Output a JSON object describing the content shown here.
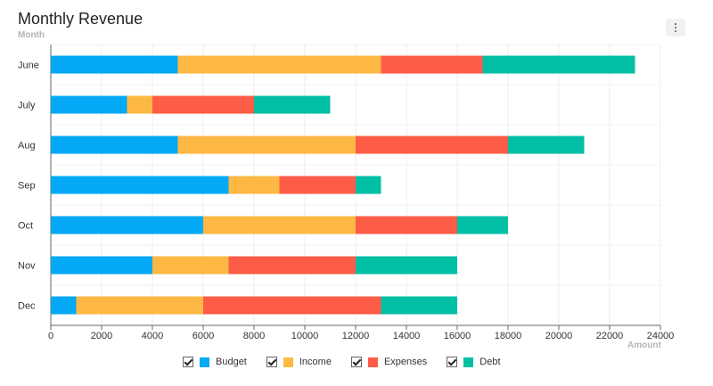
{
  "header": {
    "title": "Monthly Revenue",
    "menu_icon": "more-vertical-icon"
  },
  "chart_data": {
    "type": "bar",
    "orientation": "horizontal",
    "stacked": true,
    "title": "Monthly Revenue",
    "ylabel": "Month",
    "xlabel": "Amount",
    "categories": [
      "June",
      "July",
      "Aug",
      "Sep",
      "Oct",
      "Nov",
      "Dec"
    ],
    "xlim": [
      0,
      24000
    ],
    "xticks": [
      0,
      2000,
      4000,
      6000,
      8000,
      10000,
      12000,
      14000,
      16000,
      18000,
      20000,
      22000,
      24000
    ],
    "grid": true,
    "legend_position": "bottom",
    "series": [
      {
        "name": "Budget",
        "color": "#03a9f4",
        "values": [
          5000,
          3000,
          5000,
          7000,
          6000,
          4000,
          1000
        ]
      },
      {
        "name": "Income",
        "color": "#fdb843",
        "values": [
          8000,
          1000,
          7000,
          2000,
          6000,
          3000,
          5000
        ]
      },
      {
        "name": "Expenses",
        "color": "#fd5c47",
        "values": [
          4000,
          4000,
          6000,
          3000,
          4000,
          5000,
          7000
        ]
      },
      {
        "name": "Debt",
        "color": "#00bfa5",
        "values": [
          6000,
          3000,
          3000,
          1000,
          2000,
          4000,
          3000
        ]
      }
    ]
  }
}
